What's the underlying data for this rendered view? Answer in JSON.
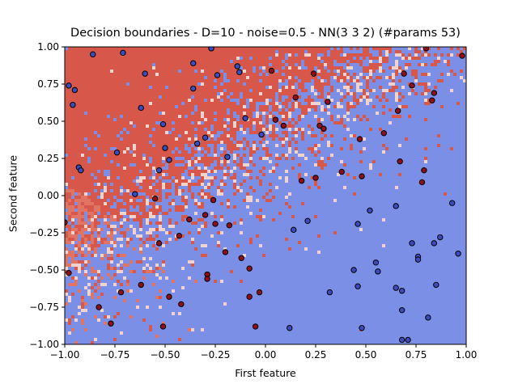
{
  "chart_data": {
    "type": "scatter",
    "title": "Decision boundaries - D=10 - noise=0.5 - NN(3 3 2) (#params 53)",
    "xlabel": "First feature",
    "ylabel": "Second feature",
    "xlim": [
      -1.0,
      1.0
    ],
    "ylim": [
      -1.0,
      1.0
    ],
    "x_ticks": [
      -1.0,
      -0.75,
      -0.5,
      -0.25,
      0.0,
      0.25,
      0.5,
      0.75,
      1.0
    ],
    "x_tick_labels": [
      "−1.00",
      "−0.75",
      "−0.50",
      "−0.25",
      "0.00",
      "0.25",
      "0.50",
      "0.75",
      "1.00"
    ],
    "y_ticks": [
      -1.0,
      -0.75,
      -0.5,
      -0.25,
      0.0,
      0.25,
      0.5,
      0.75,
      1.0
    ],
    "y_tick_labels": [
      "−1.00",
      "−0.75",
      "−0.50",
      "−0.25",
      "0.00",
      "0.25",
      "0.50",
      "0.75",
      "1.00"
    ],
    "grid": false,
    "legend": "none",
    "colors": {
      "region_red": "#d7574a",
      "region_red_light": "#e07565",
      "region_blue": "#7b8fe6",
      "boundary": "#f2d4cc",
      "point_red": "#8f0e1a",
      "point_blue": "#3a4cc0",
      "point_edge": "#000000"
    },
    "series": [
      {
        "name": "class 0",
        "color": "#8f0e1a",
        "points": [
          [
            -1.0,
            -0.18
          ],
          [
            -0.98,
            -0.52
          ],
          [
            -0.83,
            -0.75
          ],
          [
            -0.77,
            -0.86
          ],
          [
            -0.72,
            -0.65
          ],
          [
            -0.62,
            -0.6
          ],
          [
            -0.55,
            -0.02
          ],
          [
            -0.53,
            -0.32
          ],
          [
            -0.51,
            -0.88
          ],
          [
            -0.48,
            -0.68
          ],
          [
            -0.43,
            -0.27
          ],
          [
            -0.42,
            -0.73
          ],
          [
            -0.38,
            -0.16
          ],
          [
            -0.3,
            -0.13
          ],
          [
            -0.29,
            -0.53
          ],
          [
            -0.29,
            -0.56
          ],
          [
            -0.26,
            -0.03
          ],
          [
            -0.25,
            -0.19
          ],
          [
            -0.2,
            -0.38
          ],
          [
            -0.18,
            -0.2
          ],
          [
            -0.12,
            -0.42
          ],
          [
            -0.08,
            -0.68
          ],
          [
            -0.08,
            -0.49
          ],
          [
            -0.05,
            -0.88
          ],
          [
            -0.03,
            -0.65
          ],
          [
            0.03,
            0.84
          ],
          [
            0.05,
            0.51
          ],
          [
            0.09,
            0.47
          ],
          [
            0.15,
            0.66
          ],
          [
            0.18,
            0.1
          ],
          [
            0.24,
            0.82
          ],
          [
            0.25,
            0.12
          ],
          [
            0.27,
            0.47
          ],
          [
            0.29,
            0.45
          ],
          [
            0.31,
            0.63
          ],
          [
            0.38,
            0.16
          ],
          [
            0.47,
            0.38
          ],
          [
            0.48,
            0.13
          ],
          [
            0.59,
            0.42
          ],
          [
            0.66,
            0.57
          ],
          [
            0.67,
            0.23
          ],
          [
            0.69,
            0.82
          ],
          [
            0.73,
            0.74
          ],
          [
            0.78,
            0.09
          ],
          [
            0.79,
            0.17
          ],
          [
            0.8,
            0.99
          ],
          [
            0.83,
            0.64
          ],
          [
            0.84,
            0.69
          ],
          [
            0.98,
            0.94
          ]
        ]
      },
      {
        "name": "class 1",
        "color": "#3a4cc0",
        "points": [
          [
            -0.98,
            0.74
          ],
          [
            -0.96,
            0.61
          ],
          [
            -0.95,
            0.71
          ],
          [
            -0.93,
            0.19
          ],
          [
            -0.92,
            0.17
          ],
          [
            -0.86,
            0.95
          ],
          [
            -0.74,
            0.29
          ],
          [
            -0.71,
            0.96
          ],
          [
            -0.65,
            0.01
          ],
          [
            -0.62,
            0.59
          ],
          [
            -0.6,
            0.82
          ],
          [
            -0.53,
            0.17
          ],
          [
            -0.51,
            0.48
          ],
          [
            -0.5,
            0.32
          ],
          [
            -0.48,
            0.24
          ],
          [
            -0.36,
            0.89
          ],
          [
            -0.36,
            0.72
          ],
          [
            -0.34,
            0.35
          ],
          [
            -0.3,
            0.39
          ],
          [
            -0.27,
            0.99
          ],
          [
            -0.24,
            0.81
          ],
          [
            -0.19,
            0.26
          ],
          [
            -0.14,
            0.87
          ],
          [
            -0.13,
            0.83
          ],
          [
            -0.1,
            0.52
          ],
          [
            -0.02,
            0.41
          ],
          [
            0.12,
            -0.89
          ],
          [
            0.14,
            -0.23
          ],
          [
            0.21,
            -0.17
          ],
          [
            0.32,
            -0.65
          ],
          [
            0.44,
            -0.5
          ],
          [
            0.46,
            -0.19
          ],
          [
            0.46,
            -0.61
          ],
          [
            0.48,
            -0.89
          ],
          [
            0.52,
            -0.1
          ],
          [
            0.55,
            -0.45
          ],
          [
            0.56,
            -0.51
          ],
          [
            0.65,
            -0.62
          ],
          [
            0.65,
            -0.07
          ],
          [
            0.68,
            -0.64
          ],
          [
            0.68,
            -0.97
          ],
          [
            0.68,
            -0.77
          ],
          [
            0.71,
            -0.97
          ],
          [
            0.73,
            -0.32
          ],
          [
            0.76,
            -0.41
          ],
          [
            0.76,
            -0.43
          ],
          [
            0.81,
            -0.82
          ],
          [
            0.84,
            -0.32
          ],
          [
            0.85,
            -0.6
          ],
          [
            0.87,
            -0.28
          ],
          [
            0.93,
            -0.05
          ],
          [
            0.96,
            -0.39
          ]
        ]
      }
    ]
  }
}
